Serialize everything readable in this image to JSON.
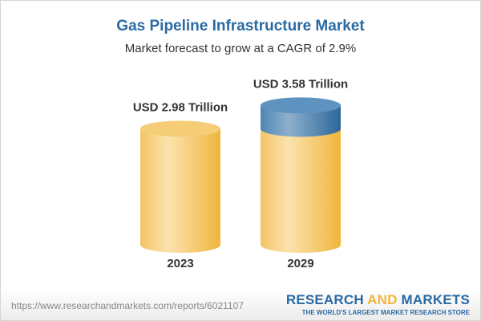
{
  "chart_data": {
    "type": "bar",
    "title": "Gas Pipeline Infrastructure Market",
    "subtitle": "Market forecast to grow at a CAGR of 2.9%",
    "categories": [
      "2023",
      "2029"
    ],
    "values": [
      2.98,
      3.58
    ],
    "unit": "USD Trillion",
    "data_labels": [
      "USD 2.98 Trillion",
      "USD 3.58 Trillion"
    ],
    "style": "3d-cylinder",
    "colors": {
      "base": "#f2c35a",
      "increment": "#4f86b5"
    }
  },
  "footer": {
    "url": "https://www.researchandmarkets.com/reports/6021107",
    "logo_word1": "RESEARCH",
    "logo_word2": "AND",
    "logo_word3": "MARKETS",
    "tagline": "THE WORLD'S LARGEST MARKET RESEARCH STORE"
  }
}
